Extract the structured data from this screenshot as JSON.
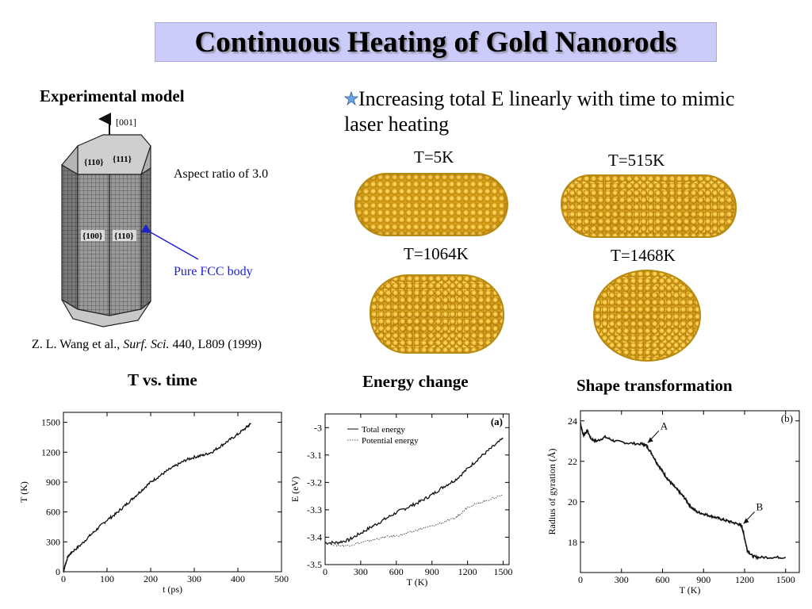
{
  "title": "Continuous Heating of Gold Nanorods",
  "experimental": {
    "heading": "Experimental model",
    "axis_label": "[001]",
    "face_110_top": "{110}",
    "face_111_top": "{111}",
    "face_100": "{100}",
    "face_110": "{110}",
    "aspect": "Aspect ratio of 3.0",
    "pure_fcc": "Pure FCC body",
    "ref_authors": "Z. L. Wang et al.,",
    "ref_journal": "Surf. Sci.",
    "ref_rest": "440, L809 (1999)"
  },
  "bullet": {
    "icon": "star-bullet-icon",
    "text": "Increasing total E linearly with time to mimic laser heating"
  },
  "snapshots": [
    {
      "label": "T=5K"
    },
    {
      "label": "T=515K"
    },
    {
      "label": "T=1064K"
    },
    {
      "label": "T=1468K"
    }
  ],
  "captions": {
    "t_vs_time": "T vs. time",
    "energy": "Energy change",
    "shape": "Shape transformation"
  },
  "colors": {
    "gold": "#d7a019",
    "title_bg": "#ccccfa",
    "annotation_blue": "#2020cc"
  },
  "chart_data": [
    {
      "type": "line",
      "xlabel": "t (ps)",
      "ylabel": "T (K)",
      "xlim": [
        0,
        500
      ],
      "ylim": [
        0,
        1600
      ],
      "xticks": [
        0,
        100,
        200,
        300,
        400,
        500
      ],
      "yticks": [
        0,
        300,
        600,
        900,
        1200,
        1500
      ],
      "series": [
        {
          "x": [
            0,
            5,
            10,
            20,
            40,
            60,
            80,
            100,
            120,
            140,
            160,
            180,
            200,
            220,
            240,
            260,
            280,
            300,
            320,
            340,
            360,
            380,
            400,
            420,
            430
          ],
          "y": [
            0,
            80,
            150,
            200,
            270,
            360,
            440,
            520,
            580,
            660,
            740,
            820,
            900,
            960,
            1020,
            1070,
            1120,
            1150,
            1170,
            1200,
            1260,
            1320,
            1380,
            1450,
            1490
          ]
        }
      ]
    },
    {
      "type": "line",
      "xlabel": "T (K)",
      "ylabel": "E (eV)",
      "xlim": [
        0,
        1550
      ],
      "ylim": [
        -3.5,
        -2.95
      ],
      "xticks": [
        0,
        300,
        600,
        900,
        1200,
        1500
      ],
      "yticks": [
        -3,
        -3.1,
        -3.2,
        -3.3,
        -3.4,
        -3.5
      ],
      "panel_label": "(a)",
      "series": [
        {
          "name": "Total energy",
          "x": [
            0,
            100,
            200,
            300,
            400,
            500,
            600,
            700,
            800,
            900,
            1000,
            1100,
            1200,
            1300,
            1400,
            1500
          ],
          "y": [
            -3.42,
            -3.42,
            -3.41,
            -3.385,
            -3.36,
            -3.335,
            -3.31,
            -3.29,
            -3.27,
            -3.245,
            -3.215,
            -3.19,
            -3.15,
            -3.11,
            -3.075,
            -3.04
          ]
        },
        {
          "name": "Potential energy",
          "x": [
            0,
            100,
            200,
            300,
            400,
            500,
            600,
            700,
            800,
            900,
            1000,
            1100,
            1150,
            1200,
            1300,
            1400,
            1500
          ],
          "y": [
            -3.42,
            -3.43,
            -3.43,
            -3.42,
            -3.41,
            -3.4,
            -3.395,
            -3.385,
            -3.37,
            -3.36,
            -3.345,
            -3.33,
            -3.31,
            -3.29,
            -3.275,
            -3.26,
            -3.245
          ]
        }
      ]
    },
    {
      "type": "line",
      "xlabel": "T (K)",
      "ylabel": "Radius of gyration (Å)",
      "xlim": [
        0,
        1600
      ],
      "ylim": [
        16.5,
        24.5
      ],
      "xticks": [
        0,
        300,
        600,
        900,
        1200,
        1500
      ],
      "yticks": [
        18,
        20,
        22,
        24
      ],
      "panel_label": "(b)",
      "annotations": [
        {
          "text": "A",
          "x": 480,
          "y": 22.8
        },
        {
          "text": "B",
          "x": 1180,
          "y": 18.8
        }
      ],
      "series": [
        {
          "x": [
            0,
            20,
            50,
            80,
            120,
            180,
            250,
            350,
            450,
            480,
            520,
            560,
            600,
            640,
            680,
            720,
            760,
            800,
            850,
            900,
            950,
            1000,
            1050,
            1100,
            1150,
            1180,
            1200,
            1220,
            1260,
            1300,
            1400,
            1500
          ],
          "y": [
            23.9,
            23.3,
            23.5,
            23.1,
            23.0,
            23.2,
            23.0,
            22.9,
            22.85,
            22.8,
            22.4,
            21.9,
            21.5,
            21.1,
            20.8,
            20.5,
            20.2,
            19.8,
            19.5,
            19.4,
            19.3,
            19.2,
            19.1,
            19.0,
            18.9,
            18.8,
            18.2,
            17.6,
            17.3,
            17.25,
            17.25,
            17.25
          ]
        }
      ]
    }
  ]
}
